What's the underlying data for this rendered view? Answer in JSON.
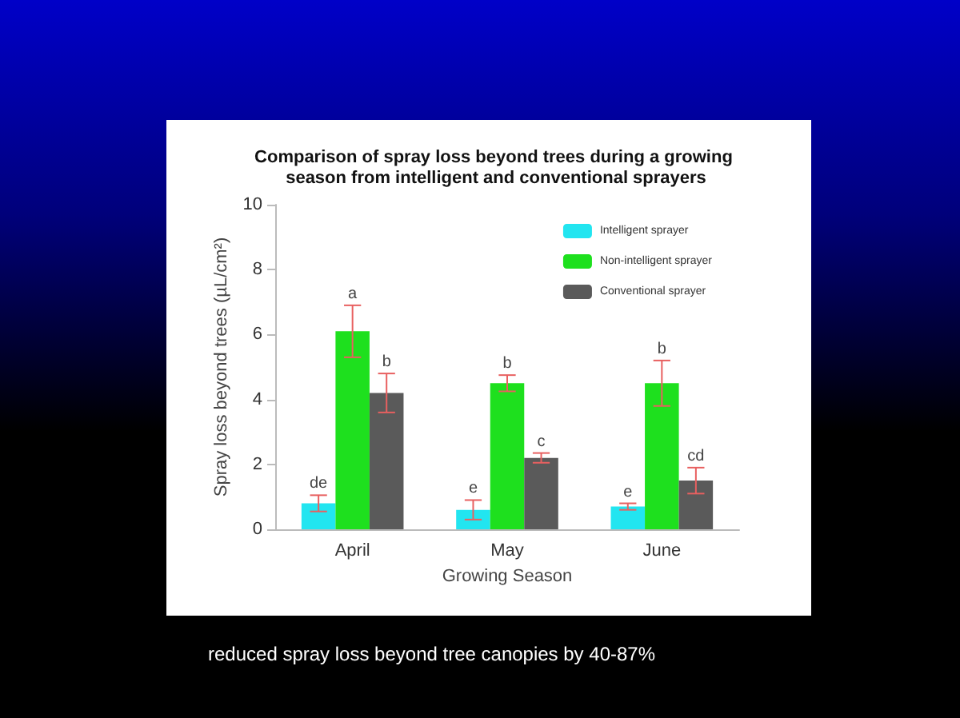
{
  "chart_data": {
    "type": "bar",
    "title": "Comparison of spray loss beyond trees during a growing season from intelligent and conventional sprayers",
    "xlabel": "Growing Season",
    "ylabel": "Spray loss beyond trees (µL/cm²)",
    "categories": [
      "April",
      "May",
      "June"
    ],
    "series": [
      {
        "name": "Intelligent sprayer",
        "color": "#22e5f0",
        "values": [
          0.8,
          0.6,
          0.7
        ],
        "errors": [
          0.25,
          0.3,
          0.1
        ]
      },
      {
        "name": "Non-intelligent sprayer",
        "color": "#1ee01e",
        "values": [
          6.1,
          4.5,
          4.5
        ],
        "errors": [
          0.8,
          0.25,
          0.7
        ]
      },
      {
        "name": "Conventional sprayer",
        "color": "#5a5a5a",
        "values": [
          4.2,
          2.2,
          1.5
        ],
        "errors": [
          0.6,
          0.15,
          0.4
        ]
      }
    ],
    "ylim": [
      0,
      10
    ],
    "yticks": [
      0,
      2,
      4,
      6,
      8,
      10
    ],
    "grid": false,
    "legend": "top right",
    "annotations": [
      "de",
      "a",
      "b",
      "e",
      "b",
      "c",
      "e",
      "b",
      "cd",
      "reduced spray loss beyond tree canopies by 40-87%"
    ]
  }
}
